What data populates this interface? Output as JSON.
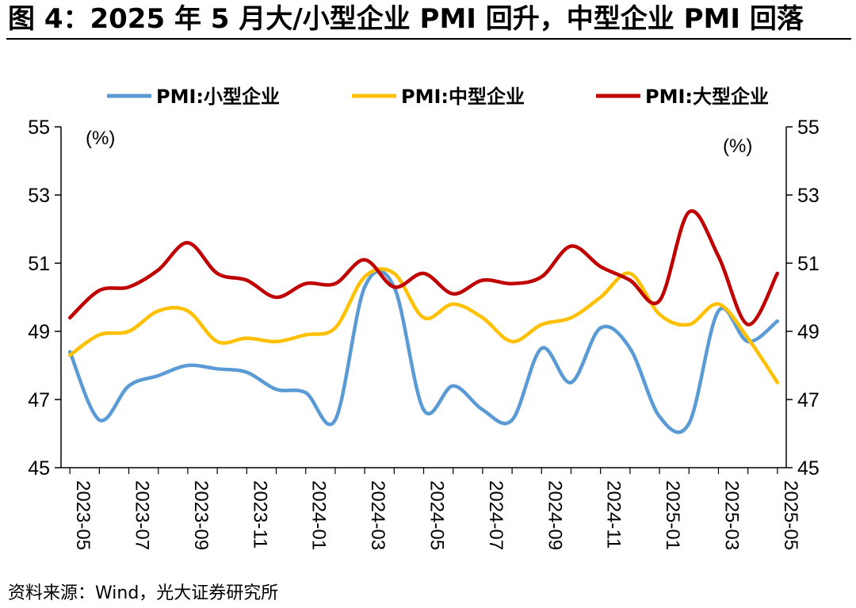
{
  "title": "图 4：2025 年 5 月大/小型企业 PMI 回升，中型企业 PMI 回落",
  "source": "资料来源：Wind，光大证券研究所",
  "chart_data": {
    "type": "line",
    "left_unit": "(%)",
    "right_unit": "(%)",
    "ylim": [
      45,
      55
    ],
    "yticks": [
      "45",
      "47",
      "49",
      "51",
      "53",
      "55"
    ],
    "grid": false,
    "legend_position": "top",
    "x": [
      "2023-05",
      "2023-06",
      "2023-07",
      "2023-08",
      "2023-09",
      "2023-10",
      "2023-11",
      "2023-12",
      "2024-01",
      "2024-02",
      "2024-03",
      "2024-04",
      "2024-05",
      "2024-06",
      "2024-07",
      "2024-08",
      "2024-09",
      "2024-10",
      "2024-11",
      "2024-12",
      "2025-01",
      "2025-02",
      "2025-03",
      "2025-04",
      "2025-05"
    ],
    "xtick_labels": [
      "2023-05",
      "2023-07",
      "2023-09",
      "2023-11",
      "2024-01",
      "2024-03",
      "2024-05",
      "2024-07",
      "2024-09",
      "2024-11",
      "2025-01",
      "2025-03",
      "2025-05"
    ],
    "series": [
      {
        "name": "PMI:小型企业",
        "color": "#5b9bd5",
        "values": [
          48.4,
          46.4,
          47.4,
          47.7,
          48.0,
          47.9,
          47.8,
          47.3,
          47.2,
          46.4,
          50.3,
          50.3,
          46.7,
          47.4,
          46.7,
          46.4,
          48.5,
          47.5,
          49.1,
          48.5,
          46.5,
          46.3,
          49.6,
          48.7,
          49.3
        ]
      },
      {
        "name": "PMI:中型企业",
        "color": "#ffc000",
        "values": [
          48.3,
          48.9,
          49.0,
          49.6,
          49.6,
          48.7,
          48.8,
          48.7,
          48.9,
          49.1,
          50.6,
          50.7,
          49.4,
          49.8,
          49.4,
          48.7,
          49.2,
          49.4,
          50.0,
          50.7,
          49.5,
          49.2,
          49.8,
          48.8,
          47.5
        ]
      },
      {
        "name": "PMI:大型企业",
        "color": "#c00000",
        "values": [
          49.4,
          50.2,
          50.3,
          50.8,
          51.6,
          50.7,
          50.5,
          50.0,
          50.4,
          50.4,
          51.1,
          50.3,
          50.7,
          50.1,
          50.5,
          50.4,
          50.6,
          51.5,
          50.9,
          50.5,
          49.9,
          52.5,
          51.2,
          49.2,
          50.7
        ]
      }
    ]
  }
}
